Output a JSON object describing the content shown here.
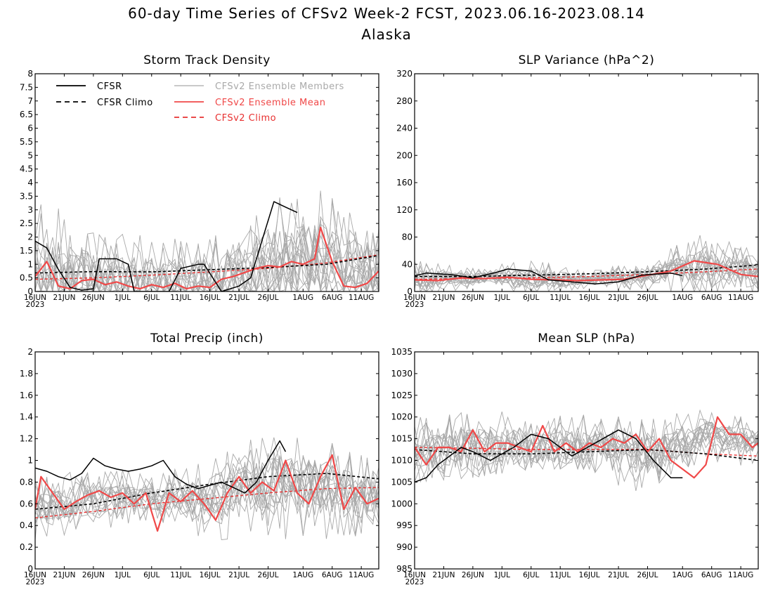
{
  "title": "60-day Time Series of CFSv2 Week-2 FCST, 2023.06.16-2023.08.14",
  "subtitle": "Alaska",
  "colors": {
    "cfsr": "#000000",
    "cfsr_climo": "#000000",
    "members": "#a9a9a9",
    "ens_mean": "#f04848",
    "cfsv2_climo": "#e83030"
  },
  "legend": {
    "cfsr": "CFSR",
    "cfsr_climo": "CFSR Climo",
    "members": "CFSv2 Ensemble Members",
    "ens_mean": "CFSv2 Ensemble Mean",
    "cfsv2_climo": "CFSv2 Climo"
  },
  "x_axis": {
    "start_date": "2023-06-16",
    "end_date": "2023-08-14",
    "tick_labels": [
      "16JUN",
      "21JUN",
      "26JUN",
      "1JUL",
      "6JUL",
      "11JUL",
      "16JUL",
      "21JUL",
      "26JUL",
      "1AUG",
      "6AUG",
      "11AUG"
    ],
    "year_label": "2023"
  },
  "chart_data": [
    {
      "type": "line",
      "title": "Storm Track Density",
      "ylim": [
        0,
        8
      ],
      "yticks": [
        "0",
        "0.5",
        "1",
        "1.5",
        "2",
        "2.5",
        "3",
        "3.5",
        "4",
        "4.5",
        "5",
        "5.5",
        "6",
        "6.5",
        "7",
        "7.5",
        "8"
      ],
      "grid": false,
      "legend_placement": "top-left",
      "series": [
        {
          "name": "CFSR",
          "x": [
            "2023-06-16",
            "2023-06-18",
            "2023-06-20",
            "2023-06-22",
            "2023-06-24",
            "2023-06-26",
            "2023-06-27",
            "2023-06-30",
            "2023-07-02",
            "2023-07-03",
            "2023-07-09",
            "2023-07-11",
            "2023-07-14",
            "2023-07-15",
            "2023-07-18",
            "2023-07-21",
            "2023-07-23",
            "2023-07-25",
            "2023-07-27",
            "2023-07-29",
            "2023-07-31"
          ],
          "values": [
            1.85,
            1.6,
            0.8,
            0.15,
            0.05,
            0.1,
            1.2,
            1.2,
            1.0,
            0.0,
            0.0,
            0.85,
            1.0,
            1.0,
            0.0,
            0.2,
            0.5,
            1.9,
            3.3,
            3.1,
            2.9
          ]
        },
        {
          "name": "CFSR Climo",
          "x": [
            "2023-06-16",
            "2023-06-26",
            "2023-07-06",
            "2023-07-16",
            "2023-07-26",
            "2023-08-05",
            "2023-08-14"
          ],
          "values": [
            0.68,
            0.73,
            0.72,
            0.8,
            0.88,
            1.0,
            1.32
          ]
        },
        {
          "name": "CFSv2 Ensemble Mean",
          "x": [
            "2023-06-16",
            "2023-06-18",
            "2023-06-20",
            "2023-06-22",
            "2023-06-24",
            "2023-06-26",
            "2023-06-28",
            "2023-06-30",
            "2023-07-02",
            "2023-07-04",
            "2023-07-06",
            "2023-07-08",
            "2023-07-10",
            "2023-07-12",
            "2023-07-14",
            "2023-07-16",
            "2023-07-18",
            "2023-07-20",
            "2023-07-22",
            "2023-07-24",
            "2023-07-26",
            "2023-07-28",
            "2023-07-30",
            "2023-08-01",
            "2023-08-03",
            "2023-08-04",
            "2023-08-06",
            "2023-08-08",
            "2023-08-10",
            "2023-08-12",
            "2023-08-14"
          ],
          "values": [
            0.55,
            1.1,
            0.2,
            0.1,
            0.4,
            0.45,
            0.25,
            0.35,
            0.2,
            0.1,
            0.25,
            0.15,
            0.3,
            0.1,
            0.2,
            0.15,
            0.45,
            0.55,
            0.7,
            0.85,
            0.95,
            0.9,
            1.1,
            1.0,
            1.2,
            2.35,
            1.1,
            0.2,
            0.15,
            0.3,
            0.75
          ]
        },
        {
          "name": "CFSv2 Climo",
          "x": [
            "2023-06-16",
            "2023-06-26",
            "2023-07-06",
            "2023-07-16",
            "2023-07-26",
            "2023-08-05",
            "2023-08-14"
          ],
          "values": [
            0.45,
            0.5,
            0.6,
            0.72,
            0.85,
            1.05,
            1.35
          ]
        },
        {
          "name": "CFSv2 Ensemble Members",
          "x": [
            "2023-06-16",
            "2023-06-26",
            "2023-07-06",
            "2023-07-16",
            "2023-07-26",
            "2023-08-05",
            "2023-08-14"
          ],
          "values": [
            0.6,
            0.45,
            0.3,
            0.35,
            1.0,
            1.3,
            0.7
          ],
          "spread_max": [
            3.8,
            2.4,
            2.2,
            2.0,
            3.5,
            3.85,
            2.6
          ]
        }
      ]
    },
    {
      "type": "line",
      "title": "SLP Variance (hPa^2)",
      "ylim": [
        0,
        320
      ],
      "yticks": [
        "0",
        "40",
        "80",
        "120",
        "160",
        "200",
        "240",
        "280",
        "320"
      ],
      "grid": false,
      "series": [
        {
          "name": "CFSR",
          "x": [
            "2023-06-16",
            "2023-06-18",
            "2023-06-22",
            "2023-06-26",
            "2023-06-30",
            "2023-07-02",
            "2023-07-06",
            "2023-07-09",
            "2023-07-13",
            "2023-07-17",
            "2023-07-21",
            "2023-07-25",
            "2023-07-30",
            "2023-08-01"
          ],
          "values": [
            23,
            27,
            25,
            20,
            28,
            33,
            30,
            17,
            14,
            11,
            14,
            24,
            27,
            23
          ]
        },
        {
          "name": "CFSR Climo",
          "x": [
            "2023-06-16",
            "2023-06-26",
            "2023-07-06",
            "2023-07-16",
            "2023-07-26",
            "2023-08-05",
            "2023-08-14"
          ],
          "values": [
            22,
            22,
            24,
            26,
            29,
            33,
            39
          ]
        },
        {
          "name": "CFSv2 Ensemble Mean",
          "x": [
            "2023-06-16",
            "2023-06-20",
            "2023-06-24",
            "2023-06-28",
            "2023-07-02",
            "2023-07-06",
            "2023-07-10",
            "2023-07-14",
            "2023-07-18",
            "2023-07-22",
            "2023-07-26",
            "2023-07-30",
            "2023-08-03",
            "2023-08-07",
            "2023-08-11",
            "2023-08-14"
          ],
          "values": [
            17,
            16,
            20,
            19,
            21,
            18,
            17,
            16,
            17,
            18,
            24,
            30,
            45,
            40,
            25,
            22
          ]
        },
        {
          "name": "CFSv2 Climo",
          "x": [
            "2023-06-16",
            "2023-06-26",
            "2023-07-06",
            "2023-07-16",
            "2023-07-26",
            "2023-08-05",
            "2023-08-14"
          ],
          "values": [
            18,
            19,
            20,
            22,
            25,
            29,
            33
          ]
        },
        {
          "name": "CFSv2 Ensemble Members",
          "x": [
            "2023-06-16",
            "2023-06-26",
            "2023-07-06",
            "2023-07-16",
            "2023-07-26",
            "2023-08-05",
            "2023-08-14"
          ],
          "values": [
            18,
            20,
            19,
            17,
            24,
            38,
            24
          ],
          "spread_max": [
            48,
            35,
            50,
            30,
            50,
            90,
            60
          ]
        }
      ]
    },
    {
      "type": "line",
      "title": "Total Precip (inch)",
      "ylim": [
        0,
        2
      ],
      "yticks": [
        "0",
        "0.2",
        "0.4",
        "0.6",
        "0.8",
        "1",
        "1.2",
        "1.4",
        "1.6",
        "1.8",
        "2"
      ],
      "grid": false,
      "series": [
        {
          "name": "CFSR",
          "x": [
            "2023-06-16",
            "2023-06-18",
            "2023-06-20",
            "2023-06-22",
            "2023-06-24",
            "2023-06-26",
            "2023-06-28",
            "2023-06-30",
            "2023-07-02",
            "2023-07-04",
            "2023-07-06",
            "2023-07-08",
            "2023-07-10",
            "2023-07-12",
            "2023-07-14",
            "2023-07-16",
            "2023-07-18",
            "2023-07-20",
            "2023-07-22",
            "2023-07-24",
            "2023-07-26",
            "2023-07-28",
            "2023-07-29"
          ],
          "values": [
            0.93,
            0.9,
            0.85,
            0.82,
            0.88,
            1.02,
            0.95,
            0.92,
            0.9,
            0.92,
            0.95,
            1.0,
            0.85,
            0.78,
            0.74,
            0.77,
            0.8,
            0.75,
            0.7,
            0.8,
            1.0,
            1.18,
            1.08
          ]
        },
        {
          "name": "CFSR Climo",
          "x": [
            "2023-06-16",
            "2023-06-26",
            "2023-07-06",
            "2023-07-16",
            "2023-07-26",
            "2023-08-05",
            "2023-08-14"
          ],
          "values": [
            0.55,
            0.6,
            0.7,
            0.78,
            0.85,
            0.88,
            0.83
          ]
        },
        {
          "name": "CFSv2 Ensemble Mean",
          "x": [
            "2023-06-16",
            "2023-06-17",
            "2023-06-19",
            "2023-06-21",
            "2023-06-23",
            "2023-06-25",
            "2023-06-27",
            "2023-06-29",
            "2023-07-01",
            "2023-07-03",
            "2023-07-05",
            "2023-07-07",
            "2023-07-09",
            "2023-07-11",
            "2023-07-13",
            "2023-07-15",
            "2023-07-17",
            "2023-07-19",
            "2023-07-21",
            "2023-07-23",
            "2023-07-25",
            "2023-07-27",
            "2023-07-29",
            "2023-07-31",
            "2023-08-02",
            "2023-08-04",
            "2023-08-06",
            "2023-08-08",
            "2023-08-10",
            "2023-08-12",
            "2023-08-14"
          ],
          "values": [
            0.55,
            0.85,
            0.7,
            0.55,
            0.62,
            0.68,
            0.72,
            0.66,
            0.7,
            0.6,
            0.7,
            0.35,
            0.7,
            0.62,
            0.72,
            0.6,
            0.45,
            0.7,
            0.85,
            0.7,
            0.8,
            0.72,
            1.0,
            0.7,
            0.6,
            0.85,
            1.05,
            0.55,
            0.75,
            0.6,
            0.65
          ]
        },
        {
          "name": "CFSv2 Climo",
          "x": [
            "2023-06-16",
            "2023-06-26",
            "2023-07-06",
            "2023-07-16",
            "2023-07-26",
            "2023-08-05",
            "2023-08-14"
          ],
          "values": [
            0.47,
            0.53,
            0.6,
            0.65,
            0.7,
            0.74,
            0.75
          ]
        },
        {
          "name": "CFSv2 Ensemble Members",
          "x": [
            "2023-06-16",
            "2023-06-26",
            "2023-07-06",
            "2023-07-16",
            "2023-07-26",
            "2023-08-05",
            "2023-08-14"
          ],
          "values": [
            0.55,
            0.65,
            0.65,
            0.65,
            0.8,
            0.75,
            0.65
          ],
          "spread_max": [
            0.85,
            0.95,
            0.9,
            1.05,
            1.35,
            1.25,
            1.0
          ]
        }
      ]
    },
    {
      "type": "line",
      "title": "Mean SLP (hPa)",
      "ylim": [
        985,
        1035
      ],
      "yticks": [
        "985",
        "990",
        "995",
        "1000",
        "1005",
        "1010",
        "1015",
        "1020",
        "1025",
        "1030",
        "1035"
      ],
      "grid": false,
      "series": [
        {
          "name": "CFSR",
          "x": [
            "2023-06-16",
            "2023-06-18",
            "2023-06-20",
            "2023-06-24",
            "2023-06-26",
            "2023-06-29",
            "2023-07-03",
            "2023-07-06",
            "2023-07-09",
            "2023-07-13",
            "2023-07-17",
            "2023-07-21",
            "2023-07-24",
            "2023-07-27",
            "2023-07-30",
            "2023-08-01"
          ],
          "values": [
            1005,
            1006,
            1009,
            1013,
            1012,
            1010,
            1013,
            1016,
            1015,
            1011,
            1014,
            1017,
            1015,
            1010,
            1006,
            1006
          ]
        },
        {
          "name": "CFSR Climo",
          "x": [
            "2023-06-16",
            "2023-06-26",
            "2023-07-06",
            "2023-07-16",
            "2023-07-26",
            "2023-08-05",
            "2023-08-14"
          ],
          "values": [
            1012.5,
            1011.5,
            1011.5,
            1012.0,
            1012.5,
            1011.5,
            1010.0
          ]
        },
        {
          "name": "CFSv2 Ensemble Mean",
          "x": [
            "2023-06-16",
            "2023-06-18",
            "2023-06-20",
            "2023-06-22",
            "2023-06-24",
            "2023-06-26",
            "2023-06-28",
            "2023-06-30",
            "2023-07-02",
            "2023-07-04",
            "2023-07-06",
            "2023-07-08",
            "2023-07-10",
            "2023-07-12",
            "2023-07-14",
            "2023-07-16",
            "2023-07-18",
            "2023-07-20",
            "2023-07-22",
            "2023-07-24",
            "2023-07-26",
            "2023-07-28",
            "2023-07-30",
            "2023-08-01",
            "2023-08-03",
            "2023-08-05",
            "2023-08-07",
            "2023-08-09",
            "2023-08-11",
            "2023-08-13",
            "2023-08-14"
          ],
          "values": [
            1013,
            1009,
            1013,
            1013,
            1012,
            1017,
            1012,
            1014,
            1014,
            1013,
            1012,
            1018,
            1012,
            1014,
            1012,
            1014,
            1013,
            1015,
            1014,
            1016,
            1012,
            1015,
            1010,
            1008,
            1006,
            1009,
            1020,
            1016,
            1016,
            1013,
            1014
          ]
        },
        {
          "name": "CFSv2 Climo",
          "x": [
            "2023-06-16",
            "2023-06-26",
            "2023-07-06",
            "2023-07-16",
            "2023-07-26",
            "2023-08-05",
            "2023-08-14"
          ],
          "values": [
            1013.0,
            1012.8,
            1012.5,
            1012.5,
            1012.5,
            1011.5,
            1011.0
          ]
        },
        {
          "name": "CFSv2 Ensemble Members",
          "x": [
            "2023-06-16",
            "2023-06-26",
            "2023-07-06",
            "2023-07-16",
            "2023-07-26",
            "2023-08-05",
            "2023-08-14"
          ],
          "values": [
            1011,
            1013,
            1013,
            1013,
            1011,
            1016,
            1014
          ],
          "spread_min": [
            1005,
            1006,
            1008,
            1008,
            1000,
            1004,
            1010
          ],
          "spread_max": [
            1020,
            1023,
            1021,
            1021,
            1020,
            1023,
            1020
          ]
        }
      ]
    }
  ]
}
